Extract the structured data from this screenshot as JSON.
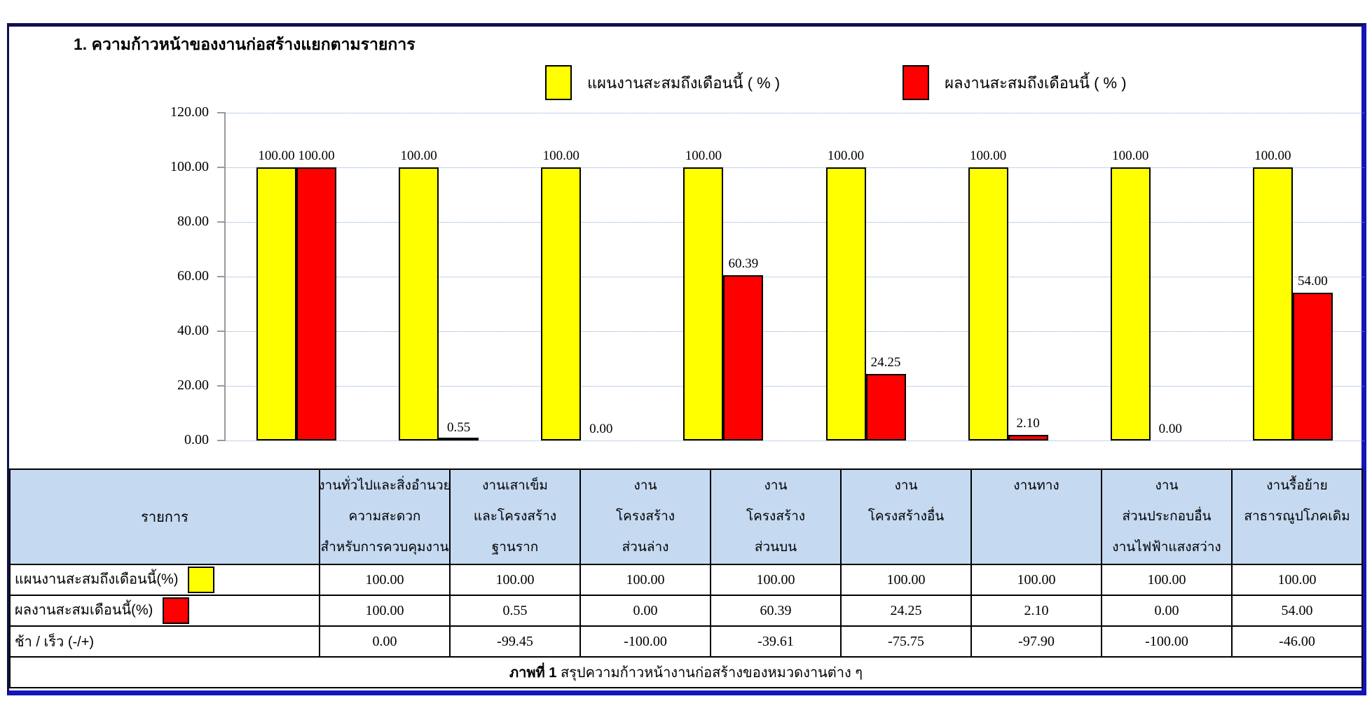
{
  "title": "1. ความก้าวหน้าของงานก่อสร้างแยกตามรายการ",
  "legend": {
    "items": [
      {
        "label": "แผนงานสะสมถึงเดือนนี้ ( % )",
        "color": "#FFFF00"
      },
      {
        "label": "ผลงานสะสมถึงเดือนนี้ ( % )",
        "color": "#FF0000"
      }
    ]
  },
  "chart_data": {
    "type": "bar",
    "title": "",
    "xlabel": "",
    "ylabel": "",
    "categories": [
      "งานทั่วไปและสิ่งอำนวยความสะดวก สำหรับการควบคุมงาน",
      "งานเสาเข็มและโครงสร้างฐานราก",
      "งานโครงสร้างส่วนล่าง",
      "งานโครงสร้างส่วนบน",
      "งานโครงสร้างอื่น",
      "งานทาง",
      "งานส่วนประกอบอื่น งานไฟฟ้าแสงสว่าง",
      "งานรื้อย้ายสาธารณูปโภคเดิม"
    ],
    "series": [
      {
        "name": "แผนงานสะสมถึงเดือนนี้ ( % )",
        "color": "#FFFF00",
        "values": [
          100.0,
          100.0,
          100.0,
          100.0,
          100.0,
          100.0,
          100.0,
          100.0
        ]
      },
      {
        "name": "ผลงานสะสมถึงเดือนนี้ ( % )",
        "color": "#FF0000",
        "values": [
          100.0,
          0.55,
          0.0,
          60.39,
          24.25,
          2.1,
          0.0,
          54.0
        ]
      }
    ],
    "ylim": [
      0,
      120
    ],
    "ytick_step": 20,
    "ytick_decimals": 2,
    "grid": true,
    "gridline_style": "dotted",
    "legend_position": "top",
    "value_labels": true
  },
  "table": {
    "item_header": "รายการ",
    "column_headers": [
      [
        "งานทั่วไปและสิ่งอำนวย",
        "ความสะดวก",
        "สำหรับการควบคุมงาน"
      ],
      [
        "งานเสาเข็ม",
        "และโครงสร้าง",
        "ฐานราก"
      ],
      [
        "งาน",
        "โครงสร้าง",
        "ส่วนล่าง"
      ],
      [
        "งาน",
        "โครงสร้าง",
        "ส่วนบน"
      ],
      [
        "งาน",
        "โครงสร้างอื่น"
      ],
      [
        "งานทาง"
      ],
      [
        "งาน",
        "ส่วนประกอบอื่น",
        "งานไฟฟ้าแสงสว่าง"
      ],
      [
        "งานรื้อย้าย",
        "สาธารณูปโภคเดิม"
      ]
    ],
    "rows": [
      {
        "label": "แผนงานสะสมถึงเดือนนี้(%)",
        "swatch_color": "#FFFF00",
        "values": [
          "100.00",
          "100.00",
          "100.00",
          "100.00",
          "100.00",
          "100.00",
          "100.00",
          "100.00"
        ]
      },
      {
        "label": "ผลงานสะสมเดือนนี้(%)",
        "swatch_color": "#FF0000",
        "values": [
          "100.00",
          "0.55",
          "0.00",
          "60.39",
          "24.25",
          "2.10",
          "0.00",
          "54.00"
        ]
      },
      {
        "label": "ช้า / เร็ว  (-/+)",
        "swatch_color": null,
        "values": [
          "0.00",
          "-99.45",
          "-100.00",
          "-39.61",
          "-75.75",
          "-97.90",
          "-100.00",
          "-46.00"
        ]
      }
    ],
    "caption_bold": "ภาพที่ 1",
    "caption_rest": " สรุปความก้าวหน้างานก่อสร้างของหมวดงานต่าง ๆ"
  },
  "colors": {
    "plan_bar": "#FFFF00",
    "actual_bar": "#FF0000",
    "bar_border": "#000000",
    "table_header_bg": "#C5D9F1",
    "gridline": "#85A9D0",
    "axis": "#9A9A9A",
    "frame_dark_navy": "#10104E",
    "frame_blue": "#1414B8"
  }
}
